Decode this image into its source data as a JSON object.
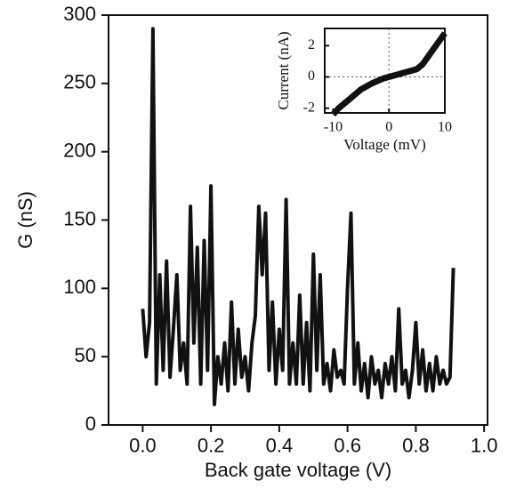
{
  "chart_data": [
    {
      "type": "line",
      "xlabel": "Back gate voltage (V)",
      "ylabel": "G (nS)",
      "xlim": [
        -0.1,
        1.01
      ],
      "ylim": [
        0,
        300
      ],
      "xticks": [
        {
          "value": 0,
          "label": "0.0"
        },
        {
          "value": 0.2,
          "label": "0.2"
        },
        {
          "value": 0.4,
          "label": "0.4"
        },
        {
          "value": 0.6,
          "label": "0.6"
        },
        {
          "value": 0.8,
          "label": "0.8"
        },
        {
          "value": 1,
          "label": "1.0"
        }
      ],
      "yticks": [
        0,
        50,
        100,
        150,
        200,
        250,
        300
      ],
      "color": "#111111",
      "x": [
        0,
        0.01,
        0.02,
        0.03,
        0.04,
        0.05,
        0.06,
        0.07,
        0.08,
        0.09,
        0.1,
        0.11,
        0.12,
        0.13,
        0.14,
        0.15,
        0.16,
        0.17,
        0.18,
        0.19,
        0.2,
        0.21,
        0.22,
        0.23,
        0.24,
        0.25,
        0.26,
        0.27,
        0.28,
        0.29,
        0.3,
        0.31,
        0.32,
        0.33,
        0.34,
        0.35,
        0.36,
        0.37,
        0.38,
        0.39,
        0.4,
        0.41,
        0.42,
        0.43,
        0.44,
        0.45,
        0.46,
        0.47,
        0.48,
        0.49,
        0.5,
        0.51,
        0.52,
        0.53,
        0.54,
        0.55,
        0.56,
        0.57,
        0.58,
        0.59,
        0.6,
        0.61,
        0.62,
        0.63,
        0.64,
        0.65,
        0.66,
        0.67,
        0.68,
        0.69,
        0.7,
        0.71,
        0.72,
        0.73,
        0.74,
        0.75,
        0.76,
        0.77,
        0.78,
        0.79,
        0.8,
        0.81,
        0.82,
        0.83,
        0.84,
        0.85,
        0.86,
        0.87,
        0.88,
        0.89,
        0.9,
        0.91
      ],
      "values": [
        85,
        50,
        75,
        290,
        30,
        110,
        40,
        120,
        35,
        70,
        110,
        40,
        60,
        30,
        160,
        60,
        130,
        30,
        135,
        40,
        175,
        15,
        50,
        30,
        60,
        25,
        90,
        30,
        70,
        35,
        50,
        25,
        60,
        80,
        160,
        110,
        155,
        40,
        90,
        30,
        70,
        40,
        165,
        30,
        60,
        30,
        95,
        30,
        75,
        25,
        125,
        40,
        110,
        30,
        45,
        25,
        55,
        35,
        40,
        30,
        100,
        155,
        30,
        60,
        25,
        45,
        20,
        50,
        30,
        40,
        20,
        45,
        30,
        50,
        25,
        85,
        30,
        40,
        20,
        40,
        75,
        30,
        55,
        25,
        45,
        25,
        50,
        30,
        40,
        30,
        35,
        115
      ]
    },
    {
      "type": "line",
      "xlabel": "Voltage (mV)",
      "ylabel": "Current (nA)",
      "xlim": [
        -11.5,
        10
      ],
      "ylim": [
        -2.3,
        3.1
      ],
      "xticks": [
        -10,
        0,
        10
      ],
      "yticks": [
        -2,
        0,
        2
      ],
      "zero_lines": true,
      "color": "#111111",
      "x": [
        -10,
        -9,
        -8,
        -7,
        -6,
        -5,
        -4,
        -3,
        -2,
        -1,
        0,
        1,
        2,
        3,
        4,
        5,
        6,
        7,
        8,
        9,
        10
      ],
      "values": [
        -2.4,
        -2.0,
        -1.7,
        -1.4,
        -1.1,
        -0.8,
        -0.6,
        -0.4,
        -0.25,
        -0.1,
        0,
        0.1,
        0.2,
        0.3,
        0.4,
        0.5,
        0.8,
        1.3,
        1.8,
        2.3,
        2.8
      ]
    }
  ]
}
